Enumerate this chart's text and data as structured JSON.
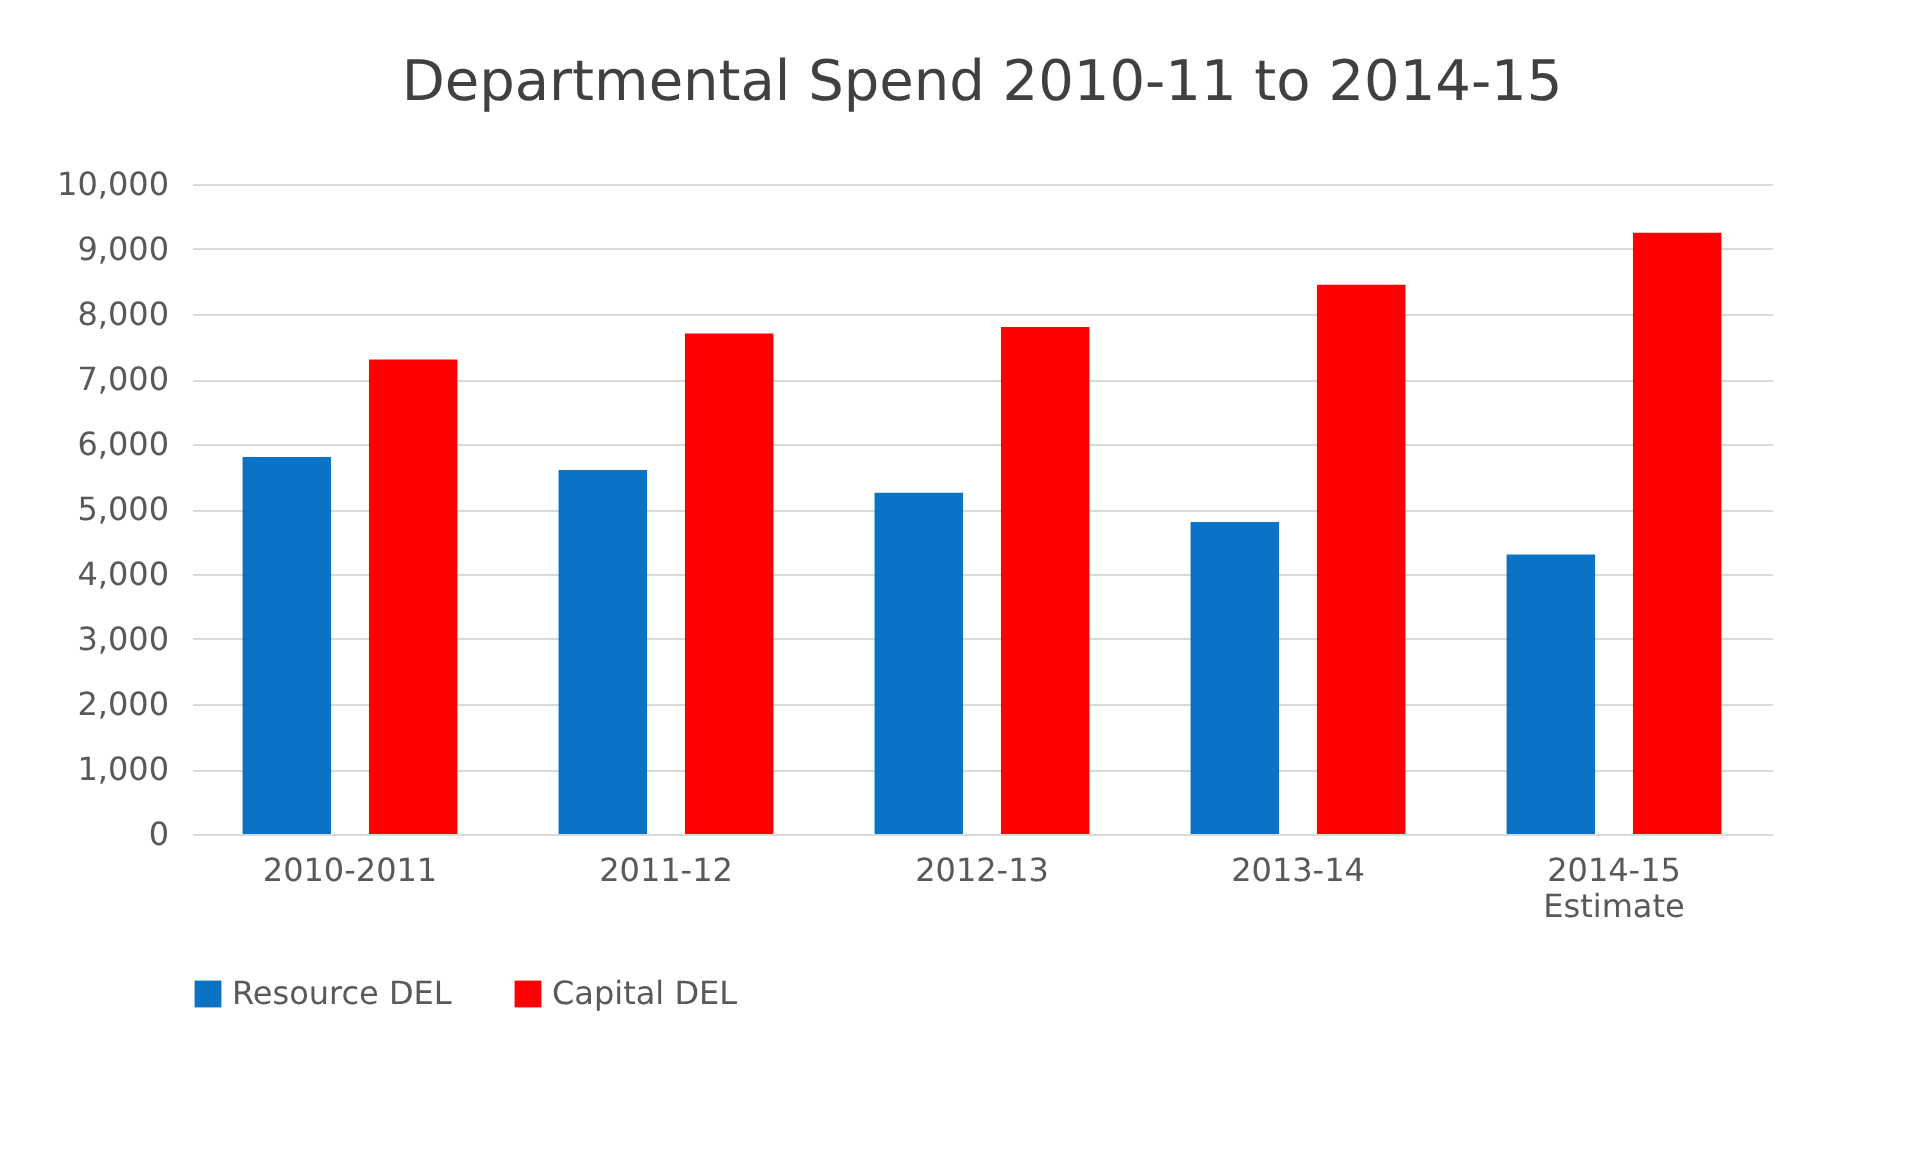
{
  "chart_data": {
    "type": "bar",
    "title": "Departmental Spend 2010-11 to 2014-15",
    "categories": [
      "2010-2011",
      "2011-12",
      "2012-13",
      "2013-14",
      "2014-15\nEstimate"
    ],
    "series": [
      {
        "name": "Resource DEL",
        "color": "#0a73c6",
        "values": [
          5800,
          5600,
          5250,
          4800,
          4300
        ]
      },
      {
        "name": "Capital DEL",
        "color": "#ff0000",
        "values": [
          7300,
          7700,
          7800,
          8450,
          9250
        ]
      }
    ],
    "ylim": [
      0,
      10000
    ],
    "yticks": [
      0,
      {
        "value": 1000,
        "label": "1,000"
      },
      {
        "value": 2000,
        "label": "2,000"
      },
      {
        "value": 3000,
        "label": "3,000"
      },
      {
        "value": 4000,
        "label": "4,000"
      },
      {
        "value": 5000,
        "label": "5,000"
      },
      {
        "value": 6000,
        "label": "6,000"
      },
      {
        "value": 7000,
        "label": "7,000"
      },
      {
        "value": 8000,
        "label": "8,000"
      },
      {
        "value": 9000,
        "label": "9,000"
      },
      {
        "value": 10000,
        "label": "10,000"
      }
    ],
    "grid": "y",
    "legend": "bottom"
  }
}
